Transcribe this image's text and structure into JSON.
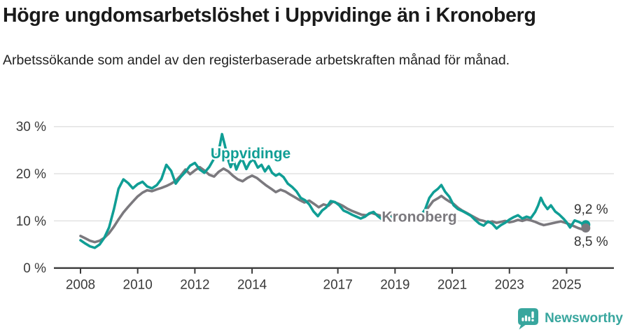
{
  "header": {
    "title": "Högre ungdomsarbetslöshet i Uppvidinge än i Kronoberg",
    "subtitle": "Arbetssökande som andel av den registerbaserade arbetskraften månad för månad."
  },
  "footer": {
    "brand": "Newsworthy",
    "brand_color": "#38a69e"
  },
  "colors": {
    "uppvidinge": "#109e95",
    "kronoberg": "#7b797e",
    "grid": "#e2e2e2",
    "axis": "#3a3a3a",
    "tick_text": "#3a3a3a",
    "end_label_text": "#333333"
  },
  "chart_data": {
    "type": "line",
    "title": "Högre ungdomsarbetslöshet i Uppvidinge än i Kronoberg",
    "subtitle": "Arbetssökande som andel av den registerbaserade arbetskraften månad för månad.",
    "xlabel": "",
    "ylabel": "",
    "unit": "%",
    "grid": "horizontal",
    "legend_position": "inline-labels",
    "xlim": [
      2007.8,
      2026.4
    ],
    "ylim": [
      0,
      30
    ],
    "y_tick_values": [
      0,
      10,
      20,
      30
    ],
    "y_tick_labels": [
      "0 %",
      "10 %",
      "20 %",
      "30 %"
    ],
    "x_tick_values": [
      2008,
      2010,
      2012,
      2014,
      2017,
      2019,
      2021,
      2023,
      2025
    ],
    "x_tick_labels": [
      "2008",
      "2010",
      "2012",
      "2014",
      "2017",
      "2019",
      "2021",
      "2023",
      "2025"
    ],
    "annotations": [
      {
        "series": "Uppvidinge",
        "text": "9,2 %"
      },
      {
        "series": "Kronoberg",
        "text": "8,5 %"
      }
    ],
    "series": [
      {
        "name": "Uppvidinge",
        "color": "#109e95",
        "label_anchor": {
          "x": 2013.95,
          "y": 23.3
        },
        "end_value_label": "9,2 %",
        "points": [
          [
            2008.0,
            5.9
          ],
          [
            2008.17,
            5.2
          ],
          [
            2008.33,
            4.6
          ],
          [
            2008.5,
            4.3
          ],
          [
            2008.67,
            5.0
          ],
          [
            2008.83,
            6.4
          ],
          [
            2009.0,
            8.6
          ],
          [
            2009.17,
            12.5
          ],
          [
            2009.33,
            16.8
          ],
          [
            2009.5,
            18.8
          ],
          [
            2009.67,
            18.0
          ],
          [
            2009.83,
            16.9
          ],
          [
            2010.0,
            17.8
          ],
          [
            2010.17,
            18.3
          ],
          [
            2010.33,
            17.3
          ],
          [
            2010.5,
            16.9
          ],
          [
            2010.67,
            17.6
          ],
          [
            2010.83,
            18.9
          ],
          [
            2011.0,
            21.9
          ],
          [
            2011.17,
            20.6
          ],
          [
            2011.33,
            17.9
          ],
          [
            2011.5,
            19.3
          ],
          [
            2011.67,
            20.4
          ],
          [
            2011.83,
            21.7
          ],
          [
            2012.0,
            22.3
          ],
          [
            2012.17,
            20.9
          ],
          [
            2012.33,
            20.2
          ],
          [
            2012.5,
            21.4
          ],
          [
            2012.67,
            23.2
          ],
          [
            2012.83,
            24.7
          ],
          [
            2012.95,
            28.4
          ],
          [
            2013.05,
            26.0
          ],
          [
            2013.15,
            23.2
          ],
          [
            2013.25,
            21.4
          ],
          [
            2013.35,
            22.9
          ],
          [
            2013.45,
            20.9
          ],
          [
            2013.55,
            22.3
          ],
          [
            2013.65,
            23.2
          ],
          [
            2013.8,
            21.0
          ],
          [
            2013.92,
            22.4
          ],
          [
            2014.05,
            23.1
          ],
          [
            2014.2,
            21.3
          ],
          [
            2014.33,
            21.9
          ],
          [
            2014.45,
            20.5
          ],
          [
            2014.58,
            21.6
          ],
          [
            2014.7,
            20.2
          ],
          [
            2014.83,
            19.6
          ],
          [
            2014.95,
            20.0
          ],
          [
            2015.1,
            19.3
          ],
          [
            2015.25,
            17.9
          ],
          [
            2015.4,
            17.2
          ],
          [
            2015.55,
            16.3
          ],
          [
            2015.7,
            14.9
          ],
          [
            2015.85,
            14.4
          ],
          [
            2016.0,
            13.5
          ],
          [
            2016.15,
            12.0
          ],
          [
            2016.3,
            11.0
          ],
          [
            2016.45,
            12.2
          ],
          [
            2016.6,
            12.9
          ],
          [
            2016.75,
            14.2
          ],
          [
            2016.9,
            14.0
          ],
          [
            2017.05,
            13.3
          ],
          [
            2017.2,
            12.2
          ],
          [
            2017.35,
            11.8
          ],
          [
            2017.5,
            11.3
          ],
          [
            2017.65,
            10.9
          ],
          [
            2017.8,
            10.5
          ],
          [
            2017.95,
            10.9
          ],
          [
            2018.1,
            11.6
          ],
          [
            2018.25,
            11.9
          ],
          [
            2018.4,
            11.0
          ],
          [
            2018.55,
            10.3
          ],
          [
            2018.7,
            10.6
          ],
          [
            2018.85,
            10.8
          ],
          [
            2019.0,
            10.4
          ],
          [
            2019.15,
            10.8
          ],
          [
            2019.3,
            10.5
          ],
          [
            2019.45,
            10.9
          ],
          [
            2019.6,
            10.3
          ],
          [
            2019.75,
            10.6
          ],
          [
            2019.9,
            11.2
          ],
          [
            2020.05,
            12.4
          ],
          [
            2020.2,
            14.9
          ],
          [
            2020.35,
            16.1
          ],
          [
            2020.5,
            16.8
          ],
          [
            2020.62,
            17.6
          ],
          [
            2020.75,
            16.2
          ],
          [
            2020.9,
            15.1
          ],
          [
            2021.05,
            13.3
          ],
          [
            2021.2,
            12.5
          ],
          [
            2021.35,
            12.1
          ],
          [
            2021.5,
            11.6
          ],
          [
            2021.65,
            11.1
          ],
          [
            2021.8,
            10.2
          ],
          [
            2021.95,
            9.4
          ],
          [
            2022.1,
            9.0
          ],
          [
            2022.25,
            9.9
          ],
          [
            2022.4,
            9.4
          ],
          [
            2022.55,
            8.4
          ],
          [
            2022.7,
            9.1
          ],
          [
            2022.85,
            9.6
          ],
          [
            2023.0,
            10.3
          ],
          [
            2023.15,
            10.8
          ],
          [
            2023.3,
            11.2
          ],
          [
            2023.45,
            10.5
          ],
          [
            2023.6,
            10.9
          ],
          [
            2023.75,
            10.6
          ],
          [
            2023.9,
            11.9
          ],
          [
            2024.0,
            13.2
          ],
          [
            2024.1,
            14.9
          ],
          [
            2024.2,
            13.6
          ],
          [
            2024.33,
            12.5
          ],
          [
            2024.45,
            13.3
          ],
          [
            2024.6,
            12.0
          ],
          [
            2024.75,
            11.3
          ],
          [
            2024.9,
            10.4
          ],
          [
            2025.0,
            9.7
          ],
          [
            2025.12,
            8.6
          ],
          [
            2025.28,
            10.1
          ],
          [
            2025.42,
            9.8
          ],
          [
            2025.55,
            9.4
          ],
          [
            2025.67,
            9.2
          ]
        ]
      },
      {
        "name": "Kronoberg",
        "color": "#7b797e",
        "label_anchor": {
          "x": 2019.85,
          "y": 9.8
        },
        "end_value_label": "8,5 %",
        "points": [
          [
            2008.0,
            6.8
          ],
          [
            2008.17,
            6.3
          ],
          [
            2008.33,
            5.8
          ],
          [
            2008.5,
            5.5
          ],
          [
            2008.67,
            5.8
          ],
          [
            2008.83,
            6.4
          ],
          [
            2009.0,
            7.4
          ],
          [
            2009.17,
            8.8
          ],
          [
            2009.33,
            10.3
          ],
          [
            2009.5,
            11.8
          ],
          [
            2009.67,
            13.0
          ],
          [
            2009.83,
            14.1
          ],
          [
            2010.0,
            15.2
          ],
          [
            2010.17,
            16.0
          ],
          [
            2010.33,
            16.5
          ],
          [
            2010.5,
            16.3
          ],
          [
            2010.67,
            16.7
          ],
          [
            2010.83,
            17.0
          ],
          [
            2011.0,
            17.4
          ],
          [
            2011.17,
            17.9
          ],
          [
            2011.33,
            18.5
          ],
          [
            2011.5,
            19.6
          ],
          [
            2011.67,
            20.9
          ],
          [
            2011.83,
            19.9
          ],
          [
            2012.0,
            20.7
          ],
          [
            2012.17,
            21.4
          ],
          [
            2012.33,
            20.7
          ],
          [
            2012.5,
            19.8
          ],
          [
            2012.67,
            19.4
          ],
          [
            2012.83,
            20.4
          ],
          [
            2013.0,
            21.1
          ],
          [
            2013.17,
            20.5
          ],
          [
            2013.33,
            19.6
          ],
          [
            2013.5,
            18.8
          ],
          [
            2013.67,
            18.4
          ],
          [
            2013.83,
            19.1
          ],
          [
            2014.0,
            19.6
          ],
          [
            2014.17,
            19.1
          ],
          [
            2014.33,
            18.3
          ],
          [
            2014.5,
            17.5
          ],
          [
            2014.67,
            16.8
          ],
          [
            2014.83,
            16.1
          ],
          [
            2015.0,
            16.6
          ],
          [
            2015.17,
            16.2
          ],
          [
            2015.33,
            15.6
          ],
          [
            2015.5,
            15.0
          ],
          [
            2015.67,
            14.4
          ],
          [
            2015.83,
            13.9
          ],
          [
            2016.0,
            14.3
          ],
          [
            2016.17,
            13.6
          ],
          [
            2016.33,
            12.9
          ],
          [
            2016.5,
            13.5
          ],
          [
            2016.67,
            13.2
          ],
          [
            2016.83,
            14.1
          ],
          [
            2017.0,
            13.7
          ],
          [
            2017.17,
            13.2
          ],
          [
            2017.33,
            12.6
          ],
          [
            2017.5,
            12.1
          ],
          [
            2017.67,
            11.7
          ],
          [
            2017.83,
            11.3
          ],
          [
            2018.0,
            11.2
          ],
          [
            2018.17,
            11.7
          ],
          [
            2018.33,
            11.4
          ],
          [
            2018.5,
            11.1
          ],
          [
            2018.67,
            10.9
          ],
          [
            2018.83,
            11.2
          ],
          [
            2019.0,
            11.0
          ],
          [
            2019.17,
            10.8
          ],
          [
            2019.33,
            10.6
          ],
          [
            2019.5,
            10.8
          ],
          [
            2019.67,
            10.5
          ],
          [
            2019.83,
            10.9
          ],
          [
            2020.0,
            11.4
          ],
          [
            2020.17,
            12.9
          ],
          [
            2020.33,
            14.2
          ],
          [
            2020.5,
            14.8
          ],
          [
            2020.62,
            15.3
          ],
          [
            2020.75,
            14.7
          ],
          [
            2020.9,
            14.1
          ],
          [
            2021.05,
            13.6
          ],
          [
            2021.2,
            12.8
          ],
          [
            2021.35,
            12.2
          ],
          [
            2021.5,
            11.7
          ],
          [
            2021.65,
            11.2
          ],
          [
            2021.8,
            10.7
          ],
          [
            2021.95,
            10.2
          ],
          [
            2022.1,
            10.0
          ],
          [
            2022.25,
            9.7
          ],
          [
            2022.4,
            9.9
          ],
          [
            2022.55,
            9.6
          ],
          [
            2022.7,
            9.8
          ],
          [
            2022.85,
            10.0
          ],
          [
            2023.0,
            9.7
          ],
          [
            2023.15,
            9.9
          ],
          [
            2023.3,
            10.2
          ],
          [
            2023.45,
            10.0
          ],
          [
            2023.6,
            10.3
          ],
          [
            2023.75,
            10.1
          ],
          [
            2023.9,
            9.8
          ],
          [
            2024.05,
            9.4
          ],
          [
            2024.2,
            9.1
          ],
          [
            2024.35,
            9.3
          ],
          [
            2024.5,
            9.5
          ],
          [
            2024.65,
            9.7
          ],
          [
            2024.8,
            9.9
          ],
          [
            2024.95,
            9.6
          ],
          [
            2025.1,
            9.3
          ],
          [
            2025.25,
            8.9
          ],
          [
            2025.4,
            8.5
          ],
          [
            2025.55,
            8.2
          ],
          [
            2025.67,
            8.5
          ]
        ]
      }
    ]
  }
}
